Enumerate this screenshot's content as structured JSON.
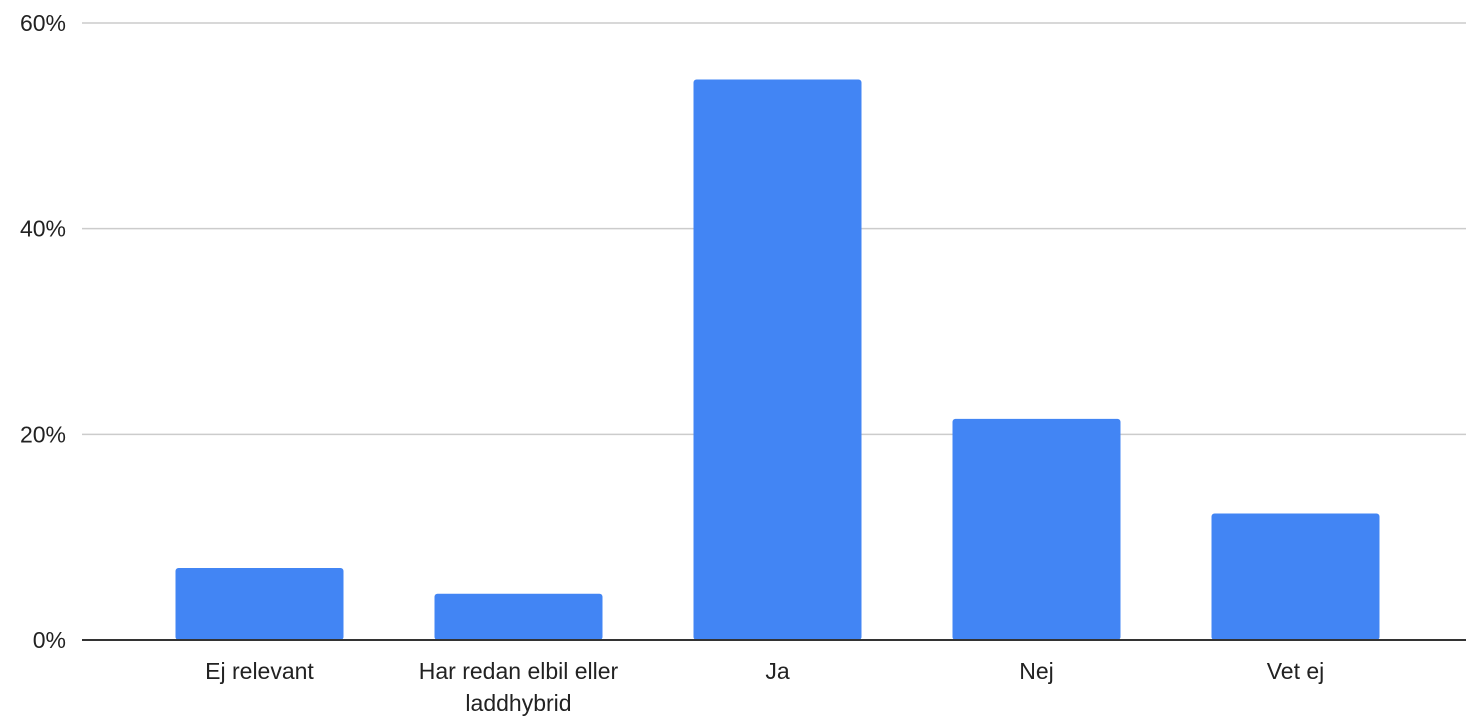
{
  "chart_data": {
    "type": "bar",
    "categories": [
      "Ej relevant",
      "Har redan elbil eller laddhybrid",
      "Ja",
      "Nej",
      "Vet ej"
    ],
    "category_label_lines": [
      [
        "Ej relevant"
      ],
      [
        "Har redan elbil eller",
        "laddhybrid"
      ],
      [
        "Ja"
      ],
      [
        "Nej"
      ],
      [
        "Vet ej"
      ]
    ],
    "values": [
      7,
      4.5,
      54.5,
      21.5,
      12.3
    ],
    "ylim": [
      0,
      60
    ],
    "yticks": [
      0,
      20,
      40,
      60
    ],
    "ytick_labels": [
      "0%",
      "20%",
      "40%",
      "60%"
    ],
    "title": "",
    "xlabel": "",
    "ylabel": "",
    "grid": true,
    "legend": "none",
    "bar_color": "#4285f4"
  }
}
